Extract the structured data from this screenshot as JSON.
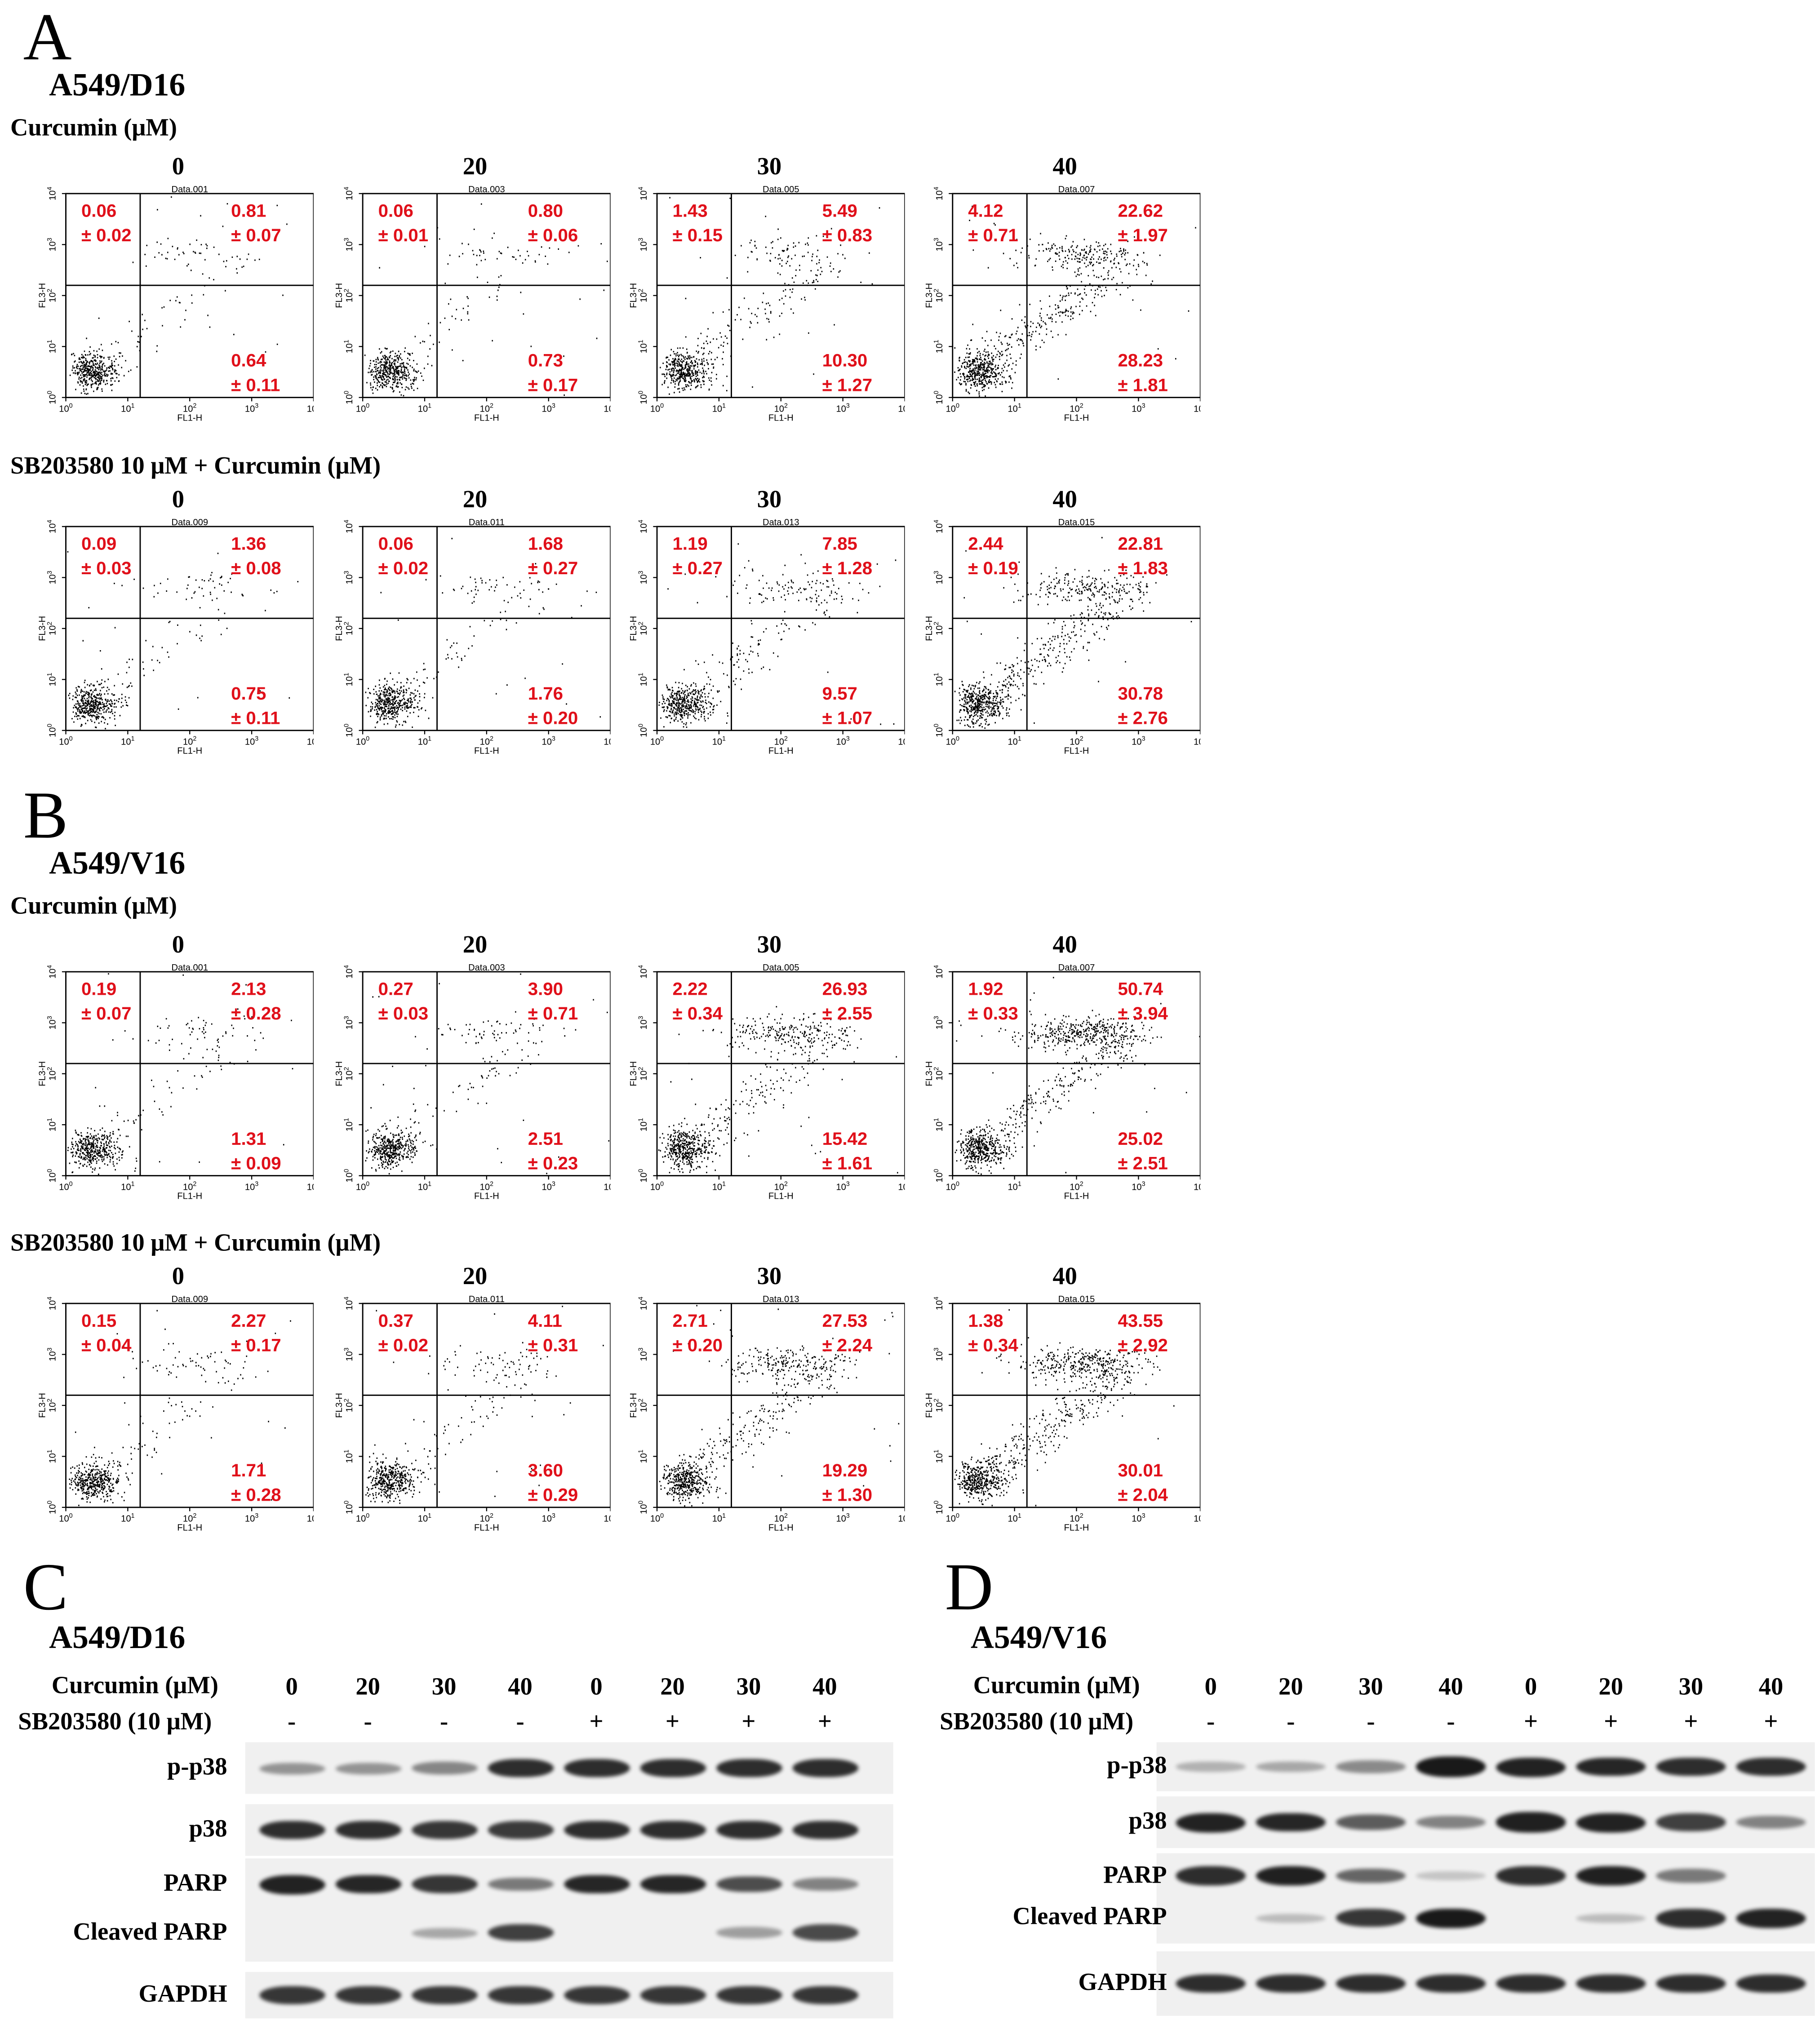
{
  "flow": {
    "panels": [
      {
        "letter": "A",
        "cell_line": "A549/D16",
        "rows": [
          {
            "condition": "Curcumin (μM)",
            "plots": [
              {
                "dose": "0",
                "file": "Data.001",
                "ul": [
                  "0.06",
                  "± 0.02"
                ],
                "ur": [
                  "0.81",
                  "± 0.07"
                ],
                "lr": [
                  "0.64",
                  "± 0.11"
                ]
              },
              {
                "dose": "20",
                "file": "Data.003",
                "ul": [
                  "0.06",
                  "± 0.01"
                ],
                "ur": [
                  "0.80",
                  "± 0.06"
                ],
                "lr": [
                  "0.73",
                  "± 0.17"
                ]
              },
              {
                "dose": "30",
                "file": "Data.005",
                "ul": [
                  "1.43",
                  "± 0.15"
                ],
                "ur": [
                  "5.49",
                  "± 0.83"
                ],
                "lr": [
                  "10.30",
                  "± 1.27"
                ]
              },
              {
                "dose": "40",
                "file": "Data.007",
                "ul": [
                  "4.12",
                  "± 0.71"
                ],
                "ur": [
                  "22.62",
                  "± 1.97"
                ],
                "lr": [
                  "28.23",
                  "± 1.81"
                ]
              }
            ]
          },
          {
            "condition": "SB203580 10 μM  + Curcumin (μM)",
            "plots": [
              {
                "dose": "0",
                "file": "Data.009",
                "ul": [
                  "0.09",
                  "± 0.03"
                ],
                "ur": [
                  "1.36",
                  "± 0.08"
                ],
                "lr": [
                  "0.75",
                  "± 0.11"
                ]
              },
              {
                "dose": "20",
                "file": "Data.011",
                "ul": [
                  "0.06",
                  "± 0.02"
                ],
                "ur": [
                  "1.68",
                  "± 0.27"
                ],
                "lr": [
                  "1.76",
                  "± 0.20"
                ]
              },
              {
                "dose": "30",
                "file": "Data.013",
                "ul": [
                  "1.19",
                  "± 0.27"
                ],
                "ur": [
                  "7.85",
                  "± 1.28"
                ],
                "lr": [
                  "9.57",
                  "± 1.07"
                ]
              },
              {
                "dose": "40",
                "file": "Data.015",
                "ul": [
                  "2.44",
                  "± 0.19"
                ],
                "ur": [
                  "22.81",
                  "± 1.83"
                ],
                "lr": [
                  "30.78",
                  "± 2.76"
                ]
              }
            ]
          }
        ]
      },
      {
        "letter": "B",
        "cell_line": "A549/V16",
        "rows": [
          {
            "condition": "Curcumin (μM)",
            "plots": [
              {
                "dose": "0",
                "file": "Data.001",
                "ul": [
                  "0.19",
                  "± 0.07"
                ],
                "ur": [
                  "2.13",
                  "± 0.28"
                ],
                "lr": [
                  "1.31",
                  "± 0.09"
                ]
              },
              {
                "dose": "20",
                "file": "Data.003",
                "ul": [
                  "0.27",
                  "± 0.03"
                ],
                "ur": [
                  "3.90",
                  "± 0.71"
                ],
                "lr": [
                  "2.51",
                  "± 0.23"
                ]
              },
              {
                "dose": "30",
                "file": "Data.005",
                "ul": [
                  "2.22",
                  "± 0.34"
                ],
                "ur": [
                  "26.93",
                  "± 2.55"
                ],
                "lr": [
                  "15.42",
                  "± 1.61"
                ]
              },
              {
                "dose": "40",
                "file": "Data.007",
                "ul": [
                  "1.92",
                  "± 0.33"
                ],
                "ur": [
                  "50.74",
                  "± 3.94"
                ],
                "lr": [
                  "25.02",
                  "± 2.51"
                ]
              }
            ]
          },
          {
            "condition": "SB203580 10 μM  + Curcumin (μM)",
            "plots": [
              {
                "dose": "0",
                "file": "Data.009",
                "ul": [
                  "0.15",
                  "± 0.04"
                ],
                "ur": [
                  "2.27",
                  "± 0.17"
                ],
                "lr": [
                  "1.71",
                  "± 0.28"
                ]
              },
              {
                "dose": "20",
                "file": "Data.011",
                "ul": [
                  "0.37",
                  "± 0.02"
                ],
                "ur": [
                  "4.11",
                  "± 0.31"
                ],
                "lr": [
                  "3.60",
                  "± 0.29"
                ]
              },
              {
                "dose": "30",
                "file": "Data.013",
                "ul": [
                  "2.71",
                  "± 0.20"
                ],
                "ur": [
                  "27.53",
                  "± 2.24"
                ],
                "lr": [
                  "19.29",
                  "± 1.30"
                ]
              },
              {
                "dose": "40",
                "file": "Data.015",
                "ul": [
                  "1.38",
                  "± 0.34"
                ],
                "ur": [
                  "43.55",
                  "± 2.92"
                ],
                "lr": [
                  "30.01",
                  "± 2.04"
                ]
              }
            ]
          }
        ]
      }
    ],
    "axis": {
      "x_label": "FL1-H",
      "y_label": "FL3-H",
      "ticks": [
        "10",
        "10",
        "10",
        "10",
        "10"
      ],
      "tick_exponents": [
        "0",
        "1",
        "2",
        "3",
        "4"
      ]
    }
  },
  "blots": [
    {
      "letter": "C",
      "cell_line": "A549/D16",
      "curcumin_label": "Curcumin (μM)",
      "sb_label": "SB203580 (10 μM)",
      "curcumin_doses": [
        "0",
        "20",
        "30",
        "40",
        "0",
        "20",
        "30",
        "40"
      ],
      "sb_signs": [
        "-",
        "-",
        "-",
        "-",
        "+",
        "+",
        "+",
        "+"
      ],
      "bands": [
        {
          "label": "p-p38",
          "intensity": [
            0.3,
            0.3,
            0.38,
            0.85,
            0.85,
            0.85,
            0.85,
            0.85
          ]
        },
        {
          "label": "p38",
          "intensity": [
            0.85,
            0.85,
            0.8,
            0.78,
            0.85,
            0.85,
            0.85,
            0.85
          ]
        },
        {
          "label": "PARP",
          "intensity": [
            0.9,
            0.88,
            0.8,
            0.45,
            0.88,
            0.88,
            0.68,
            0.4
          ]
        },
        {
          "label": "Cleaved PARP",
          "intensity": [
            0.0,
            0.0,
            0.2,
            0.75,
            0.0,
            0.0,
            0.25,
            0.7
          ]
        },
        {
          "label": "GAPDH",
          "intensity": [
            0.8,
            0.8,
            0.8,
            0.8,
            0.8,
            0.8,
            0.8,
            0.8
          ]
        }
      ]
    },
    {
      "letter": "D",
      "cell_line": "A549/V16",
      "curcumin_label": "Curcumin (μM)",
      "sb_label": "SB203580 (10 μM)",
      "curcumin_doses": [
        "0",
        "20",
        "30",
        "40",
        "0",
        "20",
        "30",
        "40"
      ],
      "sb_signs": [
        "-",
        "-",
        "-",
        "-",
        "+",
        "+",
        "+",
        "+"
      ],
      "bands": [
        {
          "label": "p-p38",
          "intensity": [
            0.15,
            0.2,
            0.35,
            0.95,
            0.9,
            0.88,
            0.85,
            0.85
          ]
        },
        {
          "label": "p38",
          "intensity": [
            0.9,
            0.88,
            0.6,
            0.4,
            0.92,
            0.9,
            0.75,
            0.4
          ]
        },
        {
          "label": "PARP",
          "intensity": [
            0.85,
            0.92,
            0.55,
            0.05,
            0.85,
            0.92,
            0.45,
            0.0
          ]
        },
        {
          "label": "Cleaved PARP",
          "intensity": [
            0.0,
            0.1,
            0.8,
            0.95,
            0.0,
            0.1,
            0.85,
            0.9
          ]
        },
        {
          "label": "GAPDH",
          "intensity": [
            0.85,
            0.85,
            0.85,
            0.85,
            0.85,
            0.85,
            0.85,
            0.85
          ]
        }
      ]
    }
  ],
  "colors": {
    "quadrant_text": "#e0101a",
    "dots": "#000000",
    "band": "#111111",
    "blot_bg": "#f0f0f0"
  }
}
